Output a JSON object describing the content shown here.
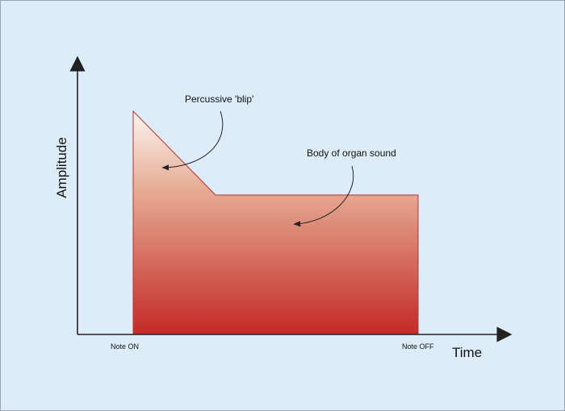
{
  "diagram": {
    "y_axis_label": "Amplitude",
    "x_axis_label": "Time",
    "markers": {
      "start": "Note ON",
      "end": "Note OFF"
    },
    "annotations": {
      "percussive": "Percussive 'blip'",
      "body": "Body of organ sound"
    },
    "colors": {
      "background": "#dcecfa",
      "envelope_top": "#fbf4f2",
      "envelope_bottom": "#c42a26",
      "envelope_outline": "#c0302c",
      "axis": "#222222"
    }
  }
}
